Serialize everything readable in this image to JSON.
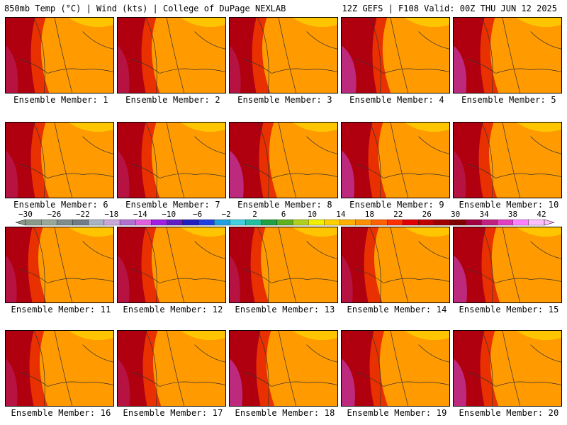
{
  "header": {
    "left": "850mb Temp (°C) | Wind (kts) | College of DuPage NEXLAB",
    "right": "12Z GEFS | F108 Valid: 00Z THU JUN 12 2025"
  },
  "members": [
    {
      "label": "Ensemble Member: 1",
      "hot": 0.55
    },
    {
      "label": "Ensemble Member: 2",
      "hot": 0.5
    },
    {
      "label": "Ensemble Member: 3",
      "hot": 0.45
    },
    {
      "label": "Ensemble Member: 4",
      "hot": 0.75
    },
    {
      "label": "Ensemble Member: 5",
      "hot": 0.6
    },
    {
      "label": "Ensemble Member: 6",
      "hot": 0.55
    },
    {
      "label": "Ensemble Member: 7",
      "hot": 0.5
    },
    {
      "label": "Ensemble Member: 8",
      "hot": 0.7
    },
    {
      "label": "Ensemble Member: 9",
      "hot": 0.6
    },
    {
      "label": "Ensemble Member: 10",
      "hot": 0.55
    },
    {
      "label": "Ensemble Member: 11",
      "hot": 0.45
    },
    {
      "label": "Ensemble Member: 12",
      "hot": 0.5
    },
    {
      "label": "Ensemble Member: 13",
      "hot": 0.4
    },
    {
      "label": "Ensemble Member: 14",
      "hot": 0.45
    },
    {
      "label": "Ensemble Member: 15",
      "hot": 0.65
    },
    {
      "label": "Ensemble Member: 16",
      "hot": 0.5
    },
    {
      "label": "Ensemble Member: 17",
      "hot": 0.55
    },
    {
      "label": "Ensemble Member: 18",
      "hot": 0.6
    },
    {
      "label": "Ensemble Member: 19",
      "hot": 0.65
    },
    {
      "label": "Ensemble Member: 20",
      "hot": 0.6
    }
  ],
  "colorbar": {
    "ticks": [
      "−30",
      "−26",
      "−22",
      "−18",
      "−14",
      "−10",
      "−6",
      "−2",
      "2",
      "6",
      "10",
      "14",
      "18",
      "22",
      "26",
      "30",
      "34",
      "38",
      "42"
    ],
    "colors": [
      "#8a9a8a",
      "#9aa89a",
      "#7e8c8c",
      "#6f7d86",
      "#a7b3c3",
      "#c9a8d8",
      "#b070d0",
      "#e060e0",
      "#a020e0",
      "#6020c0",
      "#2020c0",
      "#2040e0",
      "#20a0e0",
      "#40d0e0",
      "#20c0a0",
      "#20a040",
      "#60b020",
      "#b0d020",
      "#f0f000",
      "#ffd000",
      "#ffb000",
      "#ff9000",
      "#ff6000",
      "#ff3000",
      "#e00000",
      "#c00000",
      "#a00000",
      "#800000",
      "#a00040",
      "#c02080",
      "#e040c0",
      "#ff80ff",
      "#ffc0ff"
    ]
  },
  "colors": {
    "cool": "#ffd000",
    "warm": "#ff9a00",
    "hot": "#e83000",
    "hotter": "#b00010",
    "extreme": "#c03090"
  }
}
